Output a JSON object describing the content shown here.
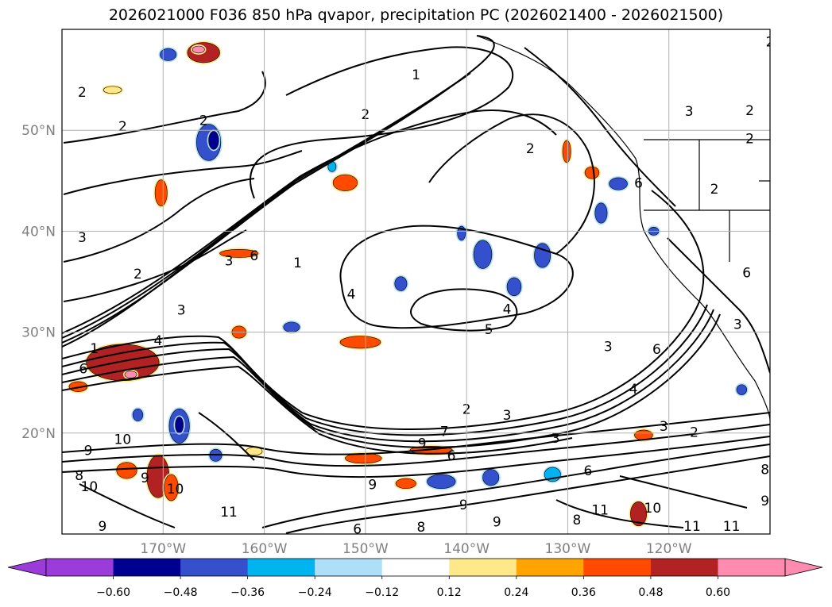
{
  "chart_data": {
    "type": "contour",
    "title": "2026021000 F036 850 hPa qvapor, precipitation PC (2026021400 - 2026021500)",
    "lat_ticks": [
      "20°N",
      "30°N",
      "40°N",
      "50°N"
    ],
    "lat_values": [
      20,
      30,
      40,
      50
    ],
    "lon_ticks": [
      "170°W",
      "160°W",
      "150°W",
      "140°W",
      "130°W",
      "120°W"
    ],
    "lon_values": [
      -170,
      -160,
      -150,
      -140,
      -130,
      -120
    ],
    "lat_range": [
      10,
      60
    ],
    "lon_range": [
      -180,
      -110
    ],
    "colorbar": {
      "extend": "both",
      "ticks": [
        "−0.60",
        "−0.48",
        "−0.36",
        "−0.24",
        "−0.12",
        "0.12",
        "0.24",
        "0.36",
        "0.48",
        "0.60"
      ],
      "colors": [
        "#9B3BD9",
        "#000090",
        "#3550CC",
        "#00B4F0",
        "#ADE0F8",
        "#FFFFFF",
        "#FFE88A",
        "#FFA400",
        "#FF4A00",
        "#B22222",
        "#FF8CB0"
      ]
    },
    "contour_labels": [
      {
        "text": "2",
        "lon": -178,
        "lat": 53.8
      },
      {
        "text": "2",
        "lon": -174,
        "lat": 50.4
      },
      {
        "text": "2",
        "lon": -166,
        "lat": 51
      },
      {
        "text": "2",
        "lon": -150,
        "lat": 51.6
      },
      {
        "text": "1",
        "lon": -145,
        "lat": 55.5
      },
      {
        "text": "2",
        "lon": -110,
        "lat": 58.8
      },
      {
        "text": "3",
        "lon": -118,
        "lat": 51.9
      },
      {
        "text": "2",
        "lon": -112,
        "lat": 52
      },
      {
        "text": "2",
        "lon": -112,
        "lat": 49.2
      },
      {
        "text": "2",
        "lon": -133.7,
        "lat": 48.2
      },
      {
        "text": "3",
        "lon": -178,
        "lat": 39.4
      },
      {
        "text": "2",
        "lon": -172.5,
        "lat": 35.8
      },
      {
        "text": "3",
        "lon": -163.5,
        "lat": 37.1
      },
      {
        "text": "6",
        "lon": -161,
        "lat": 37.6
      },
      {
        "text": "1",
        "lon": -156.7,
        "lat": 36.9
      },
      {
        "text": "4",
        "lon": -151.4,
        "lat": 33.8
      },
      {
        "text": "4",
        "lon": -136,
        "lat": 32.3
      },
      {
        "text": "5",
        "lon": -137.8,
        "lat": 30.3
      },
      {
        "text": "3",
        "lon": -168.2,
        "lat": 32.2
      },
      {
        "text": "4",
        "lon": -170.5,
        "lat": 29.2
      },
      {
        "text": "1",
        "lon": -176.8,
        "lat": 28.4
      },
      {
        "text": "6",
        "lon": -177.9,
        "lat": 26.4
      },
      {
        "text": "3",
        "lon": -126,
        "lat": 28.6
      },
      {
        "text": "6",
        "lon": -121.2,
        "lat": 28.3
      },
      {
        "text": "4",
        "lon": -123.5,
        "lat": 24.4
      },
      {
        "text": "2",
        "lon": -140,
        "lat": 22.4
      },
      {
        "text": "3",
        "lon": -136,
        "lat": 21.8
      },
      {
        "text": "3",
        "lon": -120.5,
        "lat": 20.7
      },
      {
        "text": "2",
        "lon": -117.5,
        "lat": 20.1
      },
      {
        "text": "3",
        "lon": -131.2,
        "lat": 19.5
      },
      {
        "text": "7",
        "lon": -142.2,
        "lat": 20.2
      },
      {
        "text": "9",
        "lon": -144.4,
        "lat": 19
      },
      {
        "text": "6",
        "lon": -141.5,
        "lat": 17.8
      },
      {
        "text": "6",
        "lon": -128,
        "lat": 16.3
      },
      {
        "text": "9",
        "lon": -177.4,
        "lat": 18.3
      },
      {
        "text": "10",
        "lon": -174,
        "lat": 19.4
      },
      {
        "text": "8",
        "lon": -178.3,
        "lat": 15.8
      },
      {
        "text": "9",
        "lon": -171.8,
        "lat": 15.6
      },
      {
        "text": "10",
        "lon": -177.3,
        "lat": 14.7
      },
      {
        "text": "10",
        "lon": -168.8,
        "lat": 14.5
      },
      {
        "text": "9",
        "lon": -176,
        "lat": 10.8
      },
      {
        "text": "11",
        "lon": -163.5,
        "lat": 12.2
      },
      {
        "text": "9",
        "lon": -149.3,
        "lat": 14.9
      },
      {
        "text": "9",
        "lon": -140.3,
        "lat": 12.9
      },
      {
        "text": "9",
        "lon": -137,
        "lat": 11.2
      },
      {
        "text": "8",
        "lon": -144.5,
        "lat": 10.7
      },
      {
        "text": "6",
        "lon": -150.8,
        "lat": 10.5
      },
      {
        "text": "8",
        "lon": -129.1,
        "lat": 11.4
      },
      {
        "text": "11",
        "lon": -126.8,
        "lat": 12.4
      },
      {
        "text": "10",
        "lon": -121.6,
        "lat": 12.6
      },
      {
        "text": "11",
        "lon": -117.7,
        "lat": 10.8
      },
      {
        "text": "11",
        "lon": -113.8,
        "lat": 10.8
      },
      {
        "text": "8",
        "lon": -110.5,
        "lat": 16.4
      },
      {
        "text": "9",
        "lon": -110.5,
        "lat": 13.3
      },
      {
        "text": "6",
        "lon": -112.3,
        "lat": 35.9
      },
      {
        "text": "3",
        "lon": -113.2,
        "lat": 30.8
      },
      {
        "text": "6",
        "lon": -123,
        "lat": 44.8
      },
      {
        "text": "2",
        "lon": -115.5,
        "lat": 44.2
      }
    ],
    "precip_patches": [
      {
        "lon": -174,
        "lat": 27,
        "rx": 3.6,
        "ry": 1.8,
        "bin": "0.48"
      },
      {
        "lon": -170.5,
        "lat": 15.7,
        "rx": 1.1,
        "ry": 2.1,
        "bin": "0.48"
      },
      {
        "lon": -166,
        "lat": 57.7,
        "rx": 1.6,
        "ry": 1.0,
        "bin": "0.48"
      },
      {
        "lon": -123,
        "lat": 12,
        "rx": 0.8,
        "ry": 1.2,
        "bin": "0.48"
      },
      {
        "lon": -150.5,
        "lat": 29,
        "rx": 2.0,
        "ry": 0.6,
        "bin": "0.36"
      },
      {
        "lon": -162.5,
        "lat": 37.8,
        "rx": 1.9,
        "ry": 0.4,
        "bin": "0.36"
      },
      {
        "lon": -162.5,
        "lat": 30,
        "rx": 0.7,
        "ry": 0.6,
        "bin": "0.36"
      },
      {
        "lon": -150.2,
        "lat": 17.5,
        "rx": 1.8,
        "ry": 0.5,
        "bin": "0.36"
      },
      {
        "lon": -143.5,
        "lat": 18.3,
        "rx": 2.1,
        "ry": 0.4,
        "bin": "0.36"
      },
      {
        "lon": -170.2,
        "lat": 43.8,
        "rx": 0.6,
        "ry": 1.3,
        "bin": "0.36"
      },
      {
        "lon": -152,
        "lat": 44.8,
        "rx": 1.2,
        "ry": 0.8,
        "bin": "0.36"
      },
      {
        "lon": -178.4,
        "lat": 24.6,
        "rx": 0.9,
        "ry": 0.5,
        "bin": "0.36"
      },
      {
        "lon": -173.6,
        "lat": 16.3,
        "rx": 1.0,
        "ry": 0.8,
        "bin": "0.36"
      },
      {
        "lon": -169.2,
        "lat": 14.6,
        "rx": 0.7,
        "ry": 1.3,
        "bin": "0.36"
      },
      {
        "lon": -122.5,
        "lat": 19.8,
        "rx": 0.9,
        "ry": 0.5,
        "bin": "0.36"
      },
      {
        "lon": -130.1,
        "lat": 47.9,
        "rx": 0.4,
        "ry": 1.1,
        "bin": "0.36"
      },
      {
        "lon": -127.6,
        "lat": 45.8,
        "rx": 0.7,
        "ry": 0.6,
        "bin": "0.36"
      },
      {
        "lon": -146,
        "lat": 15,
        "rx": 1.0,
        "ry": 0.5,
        "bin": "0.36"
      },
      {
        "lon": -175,
        "lat": 54,
        "rx": 0.9,
        "ry": 0.35,
        "bin": "0.24"
      },
      {
        "lon": -161,
        "lat": 18.2,
        "rx": 0.8,
        "ry": 0.4,
        "bin": "0.24"
      },
      {
        "lon": -165.5,
        "lat": 48.8,
        "rx": 1.2,
        "ry": 1.8,
        "bin": "-0.36"
      },
      {
        "lon": -165,
        "lat": 49,
        "rx": 0.5,
        "ry": 0.9,
        "bin": "-0.48"
      },
      {
        "lon": -168.4,
        "lat": 20.7,
        "rx": 1.0,
        "ry": 1.7,
        "bin": "-0.36"
      },
      {
        "lon": -168.4,
        "lat": 20.8,
        "rx": 0.4,
        "ry": 0.8,
        "bin": "-0.48"
      },
      {
        "lon": -138.4,
        "lat": 37.7,
        "rx": 0.9,
        "ry": 1.4,
        "bin": "-0.36"
      },
      {
        "lon": -135.3,
        "lat": 34.5,
        "rx": 0.7,
        "ry": 0.9,
        "bin": "-0.36"
      },
      {
        "lon": -132.5,
        "lat": 37.6,
        "rx": 0.8,
        "ry": 1.2,
        "bin": "-0.36"
      },
      {
        "lon": -126.7,
        "lat": 41.8,
        "rx": 0.6,
        "ry": 1.0,
        "bin": "-0.36"
      },
      {
        "lon": -125,
        "lat": 44.7,
        "rx": 0.9,
        "ry": 0.6,
        "bin": "-0.36"
      },
      {
        "lon": -142.5,
        "lat": 15.2,
        "rx": 1.4,
        "ry": 0.7,
        "bin": "-0.36"
      },
      {
        "lon": -146.5,
        "lat": 34.8,
        "rx": 0.6,
        "ry": 0.7,
        "bin": "-0.36"
      },
      {
        "lon": -157.3,
        "lat": 30.5,
        "rx": 0.8,
        "ry": 0.5,
        "bin": "-0.36"
      },
      {
        "lon": -164.8,
        "lat": 17.8,
        "rx": 0.6,
        "ry": 0.6,
        "bin": "-0.36"
      },
      {
        "lon": -172.5,
        "lat": 21.8,
        "rx": 0.5,
        "ry": 0.6,
        "bin": "-0.36"
      },
      {
        "lon": -169.5,
        "lat": 57.5,
        "rx": 0.8,
        "ry": 0.6,
        "bin": "-0.36"
      },
      {
        "lon": -121.5,
        "lat": 40,
        "rx": 0.5,
        "ry": 0.4,
        "bin": "-0.36"
      },
      {
        "lon": -112.8,
        "lat": 24.3,
        "rx": 0.5,
        "ry": 0.5,
        "bin": "-0.36"
      },
      {
        "lon": -137.6,
        "lat": 15.6,
        "rx": 0.8,
        "ry": 0.8,
        "bin": "-0.36"
      },
      {
        "lon": -153.3,
        "lat": 46.4,
        "rx": 0.4,
        "ry": 0.5,
        "bin": "-0.24"
      },
      {
        "lon": -140.5,
        "lat": 39.8,
        "rx": 0.4,
        "ry": 0.7,
        "bin": "-0.36"
      },
      {
        "lon": -131.5,
        "lat": 15.9,
        "rx": 0.8,
        "ry": 0.7,
        "bin": "-0.24"
      },
      {
        "lon": -166.5,
        "lat": 58,
        "rx": 0.6,
        "ry": 0.35,
        "bin": "0.60"
      },
      {
        "lon": -173.2,
        "lat": 25.8,
        "rx": 0.6,
        "ry": 0.35,
        "bin": "0.60"
      }
    ]
  }
}
